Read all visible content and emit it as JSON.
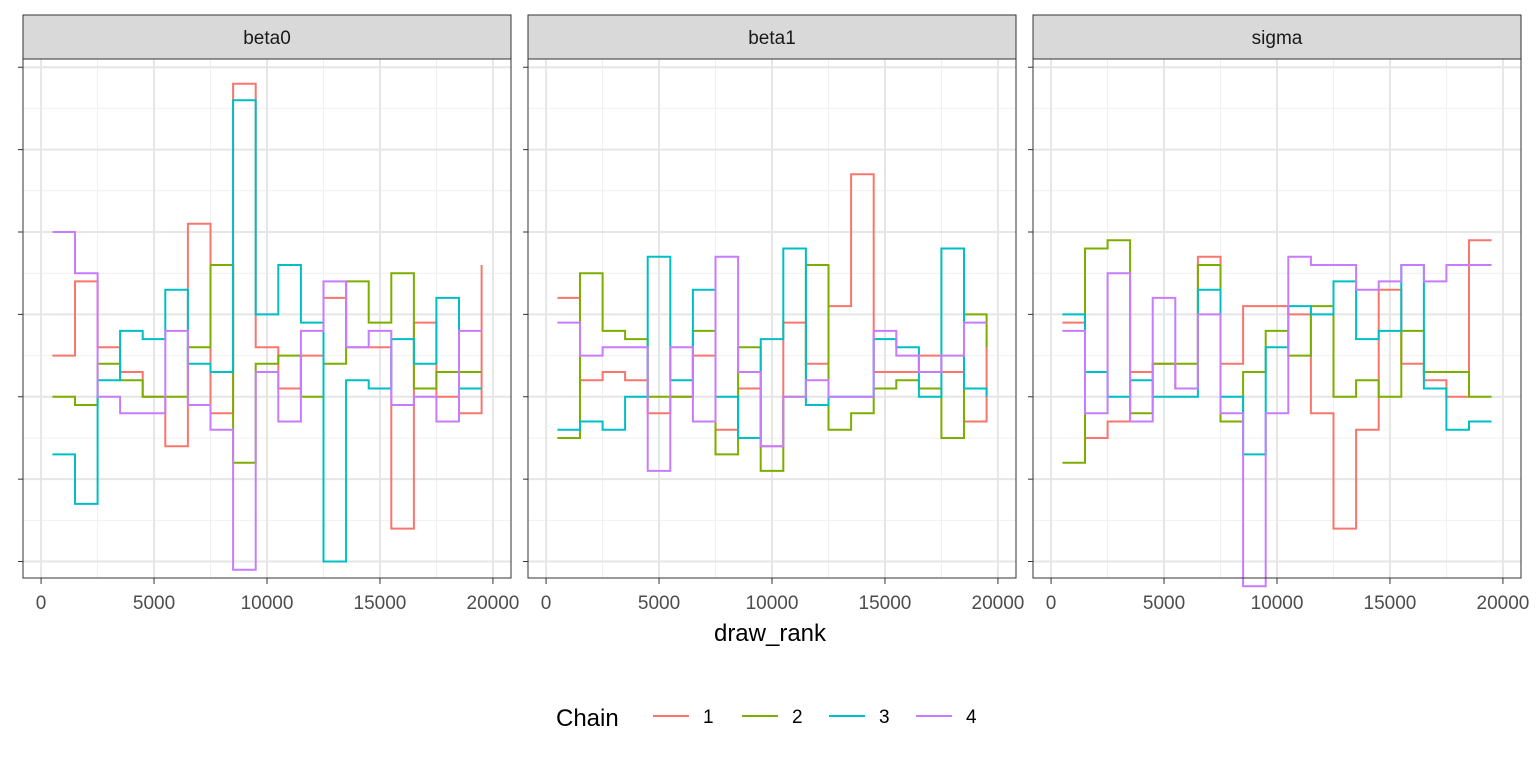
{
  "chart_data": {
    "type": "line",
    "subtype": "step",
    "x_label": "draw_rank",
    "x_ticks": [
      0,
      5000,
      10000,
      15000,
      20000
    ],
    "x_range": [
      -800,
      20800
    ],
    "y_range": [
      -2.2,
      4.1
    ],
    "y_tick_labels_shown": false,
    "grid": true,
    "theme": "bw",
    "legend": {
      "title": "Chain",
      "position": "bottom"
    },
    "colors": {
      "1": "#F8766D",
      "2": "#7CAE00",
      "3": "#00BFC4",
      "4": "#C77CFF"
    },
    "x_edges": [
      500,
      1500,
      2500,
      3500,
      4500,
      5500,
      6500,
      7500,
      8500,
      9500,
      10500,
      11500,
      12500,
      13500,
      14500,
      15500,
      16500,
      17500,
      18500,
      19500
    ],
    "facets": [
      {
        "name": "beta0",
        "series": [
          {
            "chain": "1",
            "values": [
              0.5,
              1.4,
              0.6,
              0.3,
              0.0,
              -0.6,
              2.1,
              -0.2,
              3.8,
              0.6,
              0.1,
              0.5,
              1.2,
              0.6,
              0.6,
              -1.6,
              0.9,
              0.0,
              -0.2,
              1.6
            ]
          },
          {
            "chain": "2",
            "values": [
              0.0,
              -0.1,
              0.4,
              0.2,
              0.0,
              0.0,
              0.6,
              1.6,
              -0.8,
              0.4,
              0.5,
              0.0,
              0.4,
              1.4,
              0.9,
              1.5,
              0.1,
              0.3,
              0.3,
              0.3
            ]
          },
          {
            "chain": "3",
            "values": [
              -0.7,
              -1.3,
              0.2,
              0.8,
              0.7,
              1.3,
              0.4,
              0.3,
              3.6,
              1.0,
              1.6,
              0.9,
              -2.0,
              0.2,
              0.1,
              0.7,
              0.4,
              1.2,
              0.1,
              0.1
            ]
          },
          {
            "chain": "4",
            "values": [
              2.0,
              1.5,
              0.0,
              -0.2,
              -0.2,
              0.8,
              -0.1,
              -0.4,
              -2.1,
              0.3,
              -0.3,
              0.8,
              1.4,
              0.6,
              0.8,
              -0.1,
              0.0,
              -0.3,
              0.8,
              0.8
            ]
          }
        ]
      },
      {
        "name": "beta1",
        "series": [
          {
            "chain": "1",
            "values": [
              1.2,
              0.2,
              0.3,
              0.2,
              -0.2,
              0.0,
              0.5,
              -0.4,
              0.1,
              -0.6,
              0.9,
              0.4,
              1.1,
              2.7,
              0.3,
              0.3,
              0.5,
              0.3,
              -0.3,
              0.7
            ]
          },
          {
            "chain": "2",
            "values": [
              -0.5,
              1.5,
              0.8,
              0.7,
              0.0,
              0.0,
              0.8,
              -0.7,
              0.6,
              -0.9,
              0.0,
              1.6,
              -0.4,
              -0.2,
              0.1,
              0.2,
              0.1,
              -0.5,
              1.0,
              0.6
            ]
          },
          {
            "chain": "3",
            "values": [
              -0.4,
              -0.3,
              -0.4,
              0.0,
              1.7,
              0.2,
              1.3,
              0.0,
              -0.5,
              0.7,
              1.8,
              -0.1,
              0.0,
              0.0,
              0.7,
              0.6,
              0.0,
              1.8,
              0.1,
              0.0
            ]
          },
          {
            "chain": "4",
            "values": [
              0.9,
              0.5,
              0.6,
              0.6,
              -0.9,
              0.6,
              -0.3,
              1.7,
              0.3,
              -0.6,
              0.0,
              0.2,
              0.0,
              0.0,
              0.8,
              0.5,
              0.3,
              0.5,
              0.9,
              0.9
            ]
          }
        ]
      },
      {
        "name": "sigma",
        "series": [
          {
            "chain": "1",
            "values": [
              0.9,
              -0.5,
              -0.3,
              0.3,
              0.4,
              0.1,
              1.7,
              0.4,
              1.1,
              1.1,
              1.0,
              -0.2,
              -1.6,
              -0.4,
              1.3,
              0.4,
              0.2,
              0.0,
              1.9,
              1.9
            ]
          },
          {
            "chain": "2",
            "values": [
              -0.8,
              1.8,
              1.9,
              -0.2,
              0.4,
              0.4,
              1.6,
              -0.3,
              0.3,
              0.8,
              0.5,
              1.1,
              0.0,
              0.2,
              0.0,
              0.8,
              0.3,
              0.3,
              0.0,
              0.0
            ]
          },
          {
            "chain": "3",
            "values": [
              1.0,
              0.3,
              0.0,
              0.2,
              0.0,
              0.0,
              1.3,
              0.0,
              -0.7,
              0.6,
              1.1,
              1.0,
              1.4,
              0.7,
              0.8,
              1.6,
              0.1,
              -0.4,
              -0.3,
              -0.3
            ]
          },
          {
            "chain": "4",
            "values": [
              0.8,
              -0.2,
              1.5,
              -0.3,
              1.2,
              0.1,
              1.0,
              -0.2,
              -2.3,
              -0.2,
              1.7,
              1.6,
              1.6,
              1.3,
              1.4,
              1.6,
              1.4,
              1.6,
              1.6,
              1.6
            ]
          }
        ]
      }
    ]
  }
}
